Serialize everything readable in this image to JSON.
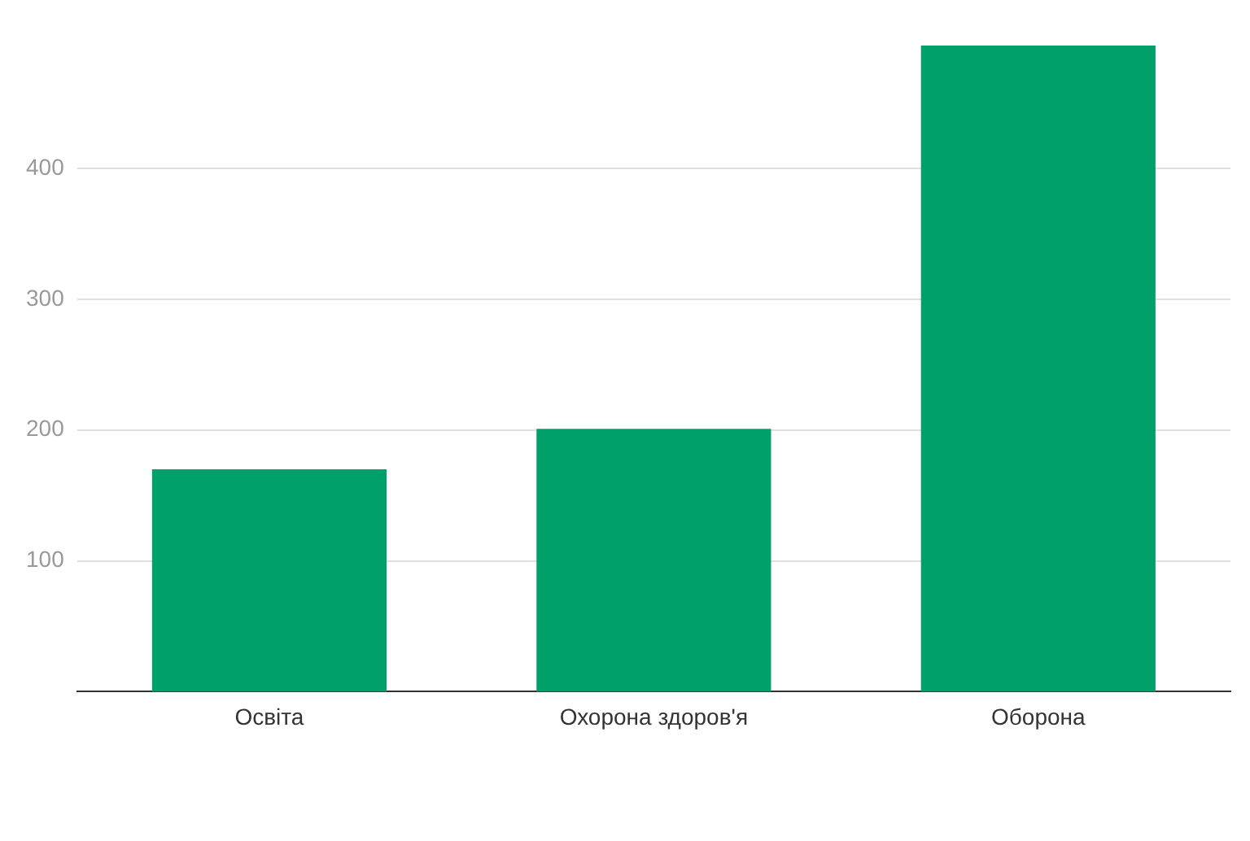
{
  "chart_data": {
    "type": "bar",
    "categories": [
      "Освіта",
      "Охорона здоров'я",
      "Оборона"
    ],
    "values": [
      170,
      201,
      494
    ],
    "ylim": [
      0,
      494
    ],
    "color": "#00a06b",
    "yticks": [
      100,
      200,
      300,
      400
    ],
    "grid": "y",
    "legend": false
  }
}
